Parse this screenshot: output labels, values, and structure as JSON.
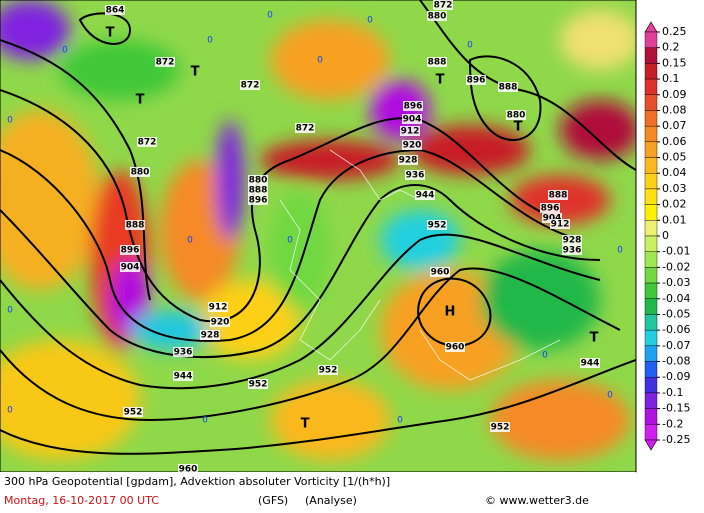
{
  "legend": {
    "levels": [
      0.25,
      0.2,
      0.15,
      0.1,
      0.09,
      0.08,
      0.07,
      0.06,
      0.05,
      0.04,
      0.03,
      0.02,
      0.01,
      0,
      -0.01,
      -0.02,
      -0.03,
      -0.04,
      -0.05,
      -0.06,
      -0.07,
      -0.08,
      -0.09,
      -0.1,
      -0.15,
      -0.2,
      -0.25
    ],
    "colors": [
      "#e0409a",
      "#b0103a",
      "#c81e28",
      "#e0302a",
      "#e8502a",
      "#f07028",
      "#f58a25",
      "#f8a020",
      "#fbb81c",
      "#fdd018",
      "#ffe010",
      "#fff000",
      "#f0f070",
      "#c8f060",
      "#a0e850",
      "#70d840",
      "#40c838",
      "#20b848",
      "#20c8a0",
      "#20d0e0",
      "#20a0f0",
      "#2060f0",
      "#4030e0",
      "#8020e0",
      "#b010e0",
      "#d020f0"
    ]
  },
  "contour_labels": [
    864,
    872,
    872,
    872,
    872,
    880,
    888,
    896,
    904,
    880,
    888,
    896,
    912,
    920,
    928,
    936,
    944,
    952,
    952,
    952,
    952,
    944,
    936,
    928,
    920,
    912,
    904,
    896,
    880,
    872,
    888,
    896,
    888,
    880,
    888,
    896,
    904,
    912,
    928,
    936,
    944,
    960,
    960,
    952,
    960
  ],
  "vorticity_labels": [
    0,
    0,
    0,
    0,
    0,
    0,
    0,
    0,
    0,
    0,
    0,
    0,
    0,
    0,
    0,
    0
  ],
  "markers": [
    "T",
    "T",
    "T",
    "T",
    "T",
    "T",
    "T",
    "H"
  ],
  "footer": {
    "caption": "300 hPa Geopotential [gpdam], Advektion absoluter Vorticity [1/(h*h)]",
    "date": "Montag, 16-10-2017  00 UTC",
    "model": "(GFS)",
    "run_type": "(Analyse)",
    "credit": "© www.wetter3.de"
  }
}
